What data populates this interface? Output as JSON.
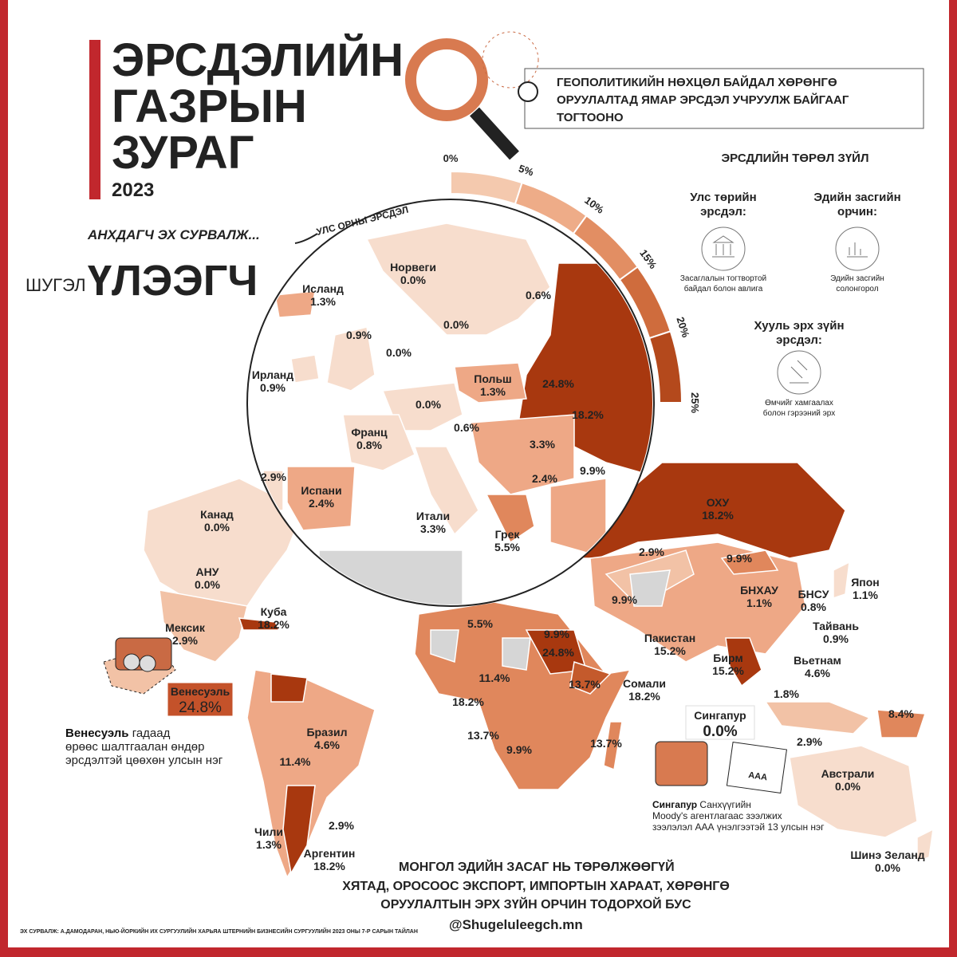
{
  "title": [
    "ЭРСДЭЛИЙН",
    "ГАЗРЫН",
    "ЗУРАГ"
  ],
  "year": "2023",
  "subtitle": [
    "ГЕОПОЛИТИКИЙН НӨХЦӨЛ БАЙДАЛ ХӨРӨНГӨ",
    "ОРУУЛАЛТАД ЯМАР ЭРСДЭЛ УЧРУУЛЖ БАЙГААГ",
    "ТОГТООНО"
  ],
  "brand": {
    "tagline": "АНХДАГЧ ЭХ СУРВАЛЖ...",
    "small": "ШУГЭЛ",
    "big": "ҮЛЭЭГЧ"
  },
  "legend": {
    "title": "ЭРСДЛИЙН ТӨРӨЛ ЗҮЙЛ",
    "items": [
      {
        "title": [
          "Улс төрийн",
          "эрсдэл:"
        ],
        "desc": [
          "Засаглалын тогтвортой",
          "байдал болон авлига"
        ]
      },
      {
        "title": [
          "Эдийн засгийн",
          "орчин:"
        ],
        "desc": [
          "Эдийн засгийн",
          "солонгорол"
        ]
      },
      {
        "title": [
          "Хууль эрх зүйн",
          "эрсдэл:"
        ],
        "desc": [
          "Өмчийг хамгаалах",
          "болон гэрээний эрх"
        ]
      }
    ]
  },
  "scale": {
    "label": "УЛС ОРНЫ ЭРСДЭЛ",
    "ticks": [
      "0%",
      "5%",
      "10%",
      "15%",
      "20%",
      "25%"
    ]
  },
  "europe": [
    {
      "name": "Норвеги",
      "value": "0.0%"
    },
    {
      "name": "Исланд",
      "value": "1.3%"
    },
    {
      "value": "0.6%"
    },
    {
      "value": "0.0%"
    },
    {
      "value": "0.9%"
    },
    {
      "value": "0.0%"
    },
    {
      "name": "Ирланд",
      "value": "0.9%"
    },
    {
      "name": "Польш",
      "value": "1.3%"
    },
    {
      "value": "24.8%"
    },
    {
      "value": "0.0%"
    },
    {
      "value": "18.2%"
    },
    {
      "value": "0.6%"
    },
    {
      "name": "Франц",
      "value": "0.8%"
    },
    {
      "value": "3.3%"
    },
    {
      "value": "2.9%"
    },
    {
      "value": "2.4%"
    },
    {
      "value": "9.9%"
    },
    {
      "name": "Испани",
      "value": "2.4%"
    },
    {
      "name": "Итали",
      "value": "3.3%"
    },
    {
      "name": "Грек",
      "value": "5.5%"
    }
  ],
  "world": [
    {
      "name": "Канад",
      "value": "0.0%"
    },
    {
      "name": "АНУ",
      "value": "0.0%"
    },
    {
      "name": "Куба",
      "value": "18.2%"
    },
    {
      "name": "Мексик",
      "value": "2.9%"
    },
    {
      "name": "Бразил",
      "value": "4.6%"
    },
    {
      "value": "11.4%"
    },
    {
      "value": "2.9%"
    },
    {
      "name": "Чили",
      "value": "1.3%"
    },
    {
      "name": "Аргентин",
      "value": "18.2%"
    },
    {
      "name": "ОХУ",
      "value": "18.2%"
    },
    {
      "value": "2.9%"
    },
    {
      "value": "9.9%"
    },
    {
      "name": "Япон",
      "value": "1.1%"
    },
    {
      "name": "БНСУ",
      "value": "0.8%"
    },
    {
      "name": "БНХАУ",
      "value": "1.1%"
    },
    {
      "value": "9.9%"
    },
    {
      "name": "Тайвань",
      "value": "0.9%"
    },
    {
      "value": "5.5%"
    },
    {
      "value": "9.9%"
    },
    {
      "value": "24.8%"
    },
    {
      "name": "Пакистан",
      "value": "15.2%"
    },
    {
      "name": "Бирм",
      "value": "15.2%"
    },
    {
      "name": "Вьетнам",
      "value": "4.6%"
    },
    {
      "value": "11.4%"
    },
    {
      "value": "13.7%"
    },
    {
      "name": "Сомали",
      "value": "18.2%"
    },
    {
      "value": "18.2%"
    },
    {
      "value": "1.8%"
    },
    {
      "value": "8.4%"
    },
    {
      "value": "13.7%"
    },
    {
      "value": "13.7%"
    },
    {
      "value": "9.9%"
    },
    {
      "value": "2.9%"
    },
    {
      "name": "Австрали",
      "value": "0.0%"
    },
    {
      "name": "Шинэ Зеланд",
      "value": "0.0%"
    }
  ],
  "highlights": [
    {
      "name": "Венесуэль",
      "value": "24.8%"
    },
    {
      "name": "Сингапур",
      "value": "0.0%"
    }
  ],
  "notes": [
    {
      "lead": "Венесуэль",
      "rest": " гадаад",
      "lines": [
        "өрөөс шалтгаалан өндөр",
        "эрсдэлтэй цөөхөн улсын нэг"
      ]
    },
    {
      "lead": "Сингапур",
      "rest": " Санхүүгийн",
      "lines": [
        "Moody's агентлагаас зээлжих",
        "зээлэлэл ААА үнэлгээтэй 13 улсын нэг"
      ]
    }
  ],
  "icon_label": "AAA",
  "footer": {
    "lines": [
      "МОНГОЛ  ЭДИЙН ЗАСАГ НЬ ТӨРӨЛЖӨӨГҮЙ",
      "ХЯТАД, ОРОСООС ЭКСПОРТ, ИМПОРТЫН ХАРААТ, ХӨРӨНГӨ",
      "ОРУУЛАЛТЫН ЭРХ ЗҮЙН ОРЧИН ТОДОРХОЙ БУС"
    ],
    "source": "ЭХ СУРВАЛЖ: А.ДАМОДАРАН, НЬЮ-ЙОРКИЙН ИХ СУРГУУЛИЙН ХАРЬЯА ШТЕРНИЙН БИЗНЕСИЙН СУРГУУЛИЙН 2023 ОНЫ 7-Р САРЫН ТАЙЛАН",
    "handle": "@Shugeluleegch.mn"
  }
}
